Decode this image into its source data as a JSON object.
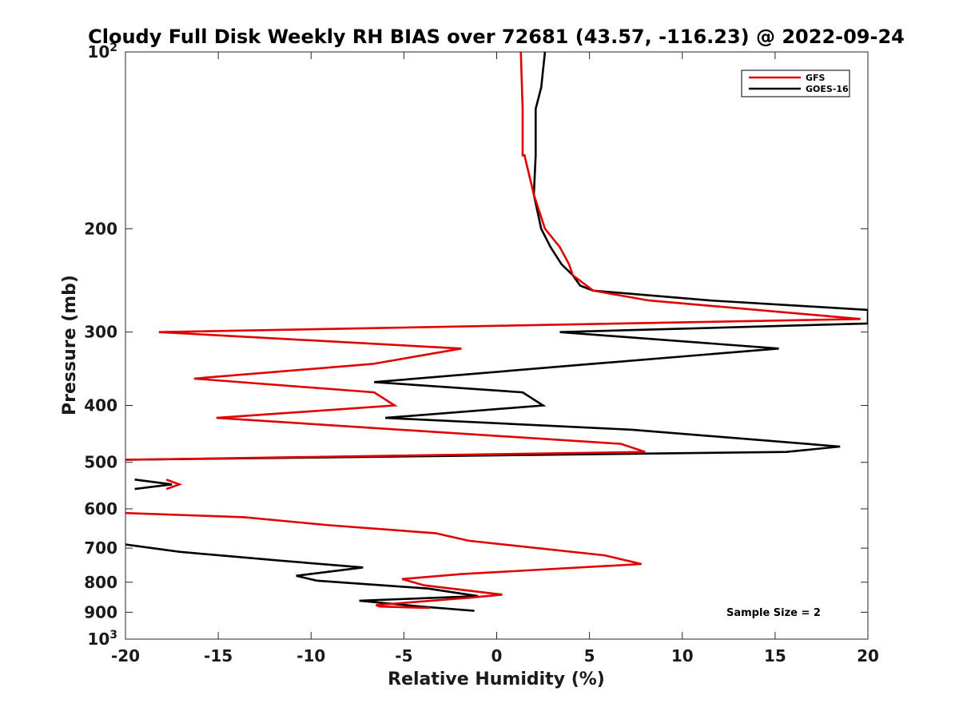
{
  "chart_data": {
    "type": "line",
    "title": "Cloudy Full Disk Weekly RH BIAS over 72681 (43.57, -116.23) @ 2022-09-24",
    "xlabel": "Relative Humidity (%)",
    "ylabel": "Pressure (mb)",
    "xlim": [
      -20,
      20
    ],
    "ylim": [
      100,
      1000
    ],
    "y_scale": "log",
    "y_reversed": true,
    "grid": false,
    "legend_position": "top-right",
    "x_ticks": [
      "-20",
      "-15",
      "-10",
      "-5",
      "0",
      "5",
      "10",
      "15",
      "20"
    ],
    "x_tick_values": [
      -20,
      -15,
      -10,
      -5,
      0,
      5,
      10,
      15,
      20
    ],
    "y_ticks": [
      {
        "value": 100,
        "base": "10",
        "exp": "2",
        "label": ""
      },
      {
        "value": 200,
        "label": "200"
      },
      {
        "value": 300,
        "label": "300"
      },
      {
        "value": 400,
        "label": "400"
      },
      {
        "value": 500,
        "label": "500"
      },
      {
        "value": 600,
        "label": "600"
      },
      {
        "value": 700,
        "label": "700"
      },
      {
        "value": 800,
        "label": "800"
      },
      {
        "value": 900,
        "label": "900"
      },
      {
        "value": 1000,
        "base": "10",
        "exp": "3",
        "label": ""
      }
    ],
    "annotation": "Sample Size = 2",
    "series": [
      {
        "name": "GFS",
        "color": "#e00000",
        "segments": [
          {
            "x": [
              1.3,
              1.4,
              1.4,
              1.4,
              1.5,
              2.0,
              2.6,
              3.4,
              3.9,
              4.1,
              5.2,
              8.2,
              19.6,
              -18.2,
              -1.9,
              -6.7,
              -16.3,
              -6.6,
              -5.5,
              -15.1,
              6.7,
              8.0,
              -20
            ],
            "y": [
              100,
              125,
              125,
              150,
              150,
              175,
              200,
              215,
              230,
              240,
              255,
              265,
              285,
              300,
              320,
              340,
              360,
              380,
              400,
              420,
              465,
              480,
              495
            ]
          },
          {
            "x": [
              -17.8,
              -17.1,
              -17.8
            ],
            "y": [
              535,
              545,
              555
            ]
          },
          {
            "x": [
              -20,
              -13.6,
              -9.0,
              -3.3,
              -1.5,
              5.8,
              7.8,
              -1.9,
              -5.1,
              -3.9,
              0.3,
              -1.4,
              -6.5,
              -6.3,
              -3.6
            ],
            "y": [
              610,
              620,
              640,
              660,
              680,
              720,
              745,
              775,
              790,
              810,
              840,
              850,
              875,
              880,
              885
            ]
          }
        ]
      },
      {
        "name": "GOES-16",
        "color": "#000000",
        "segments": [
          {
            "x": [
              2.6,
              2.4,
              2.1,
              2.1,
              2.1,
              2.0,
              2.4,
              2.9,
              3.5,
              4.1,
              4.5,
              5.2,
              11.5,
              20.0,
              20.0,
              3.4,
              15.2,
              5.1,
              -6.6,
              1.4,
              2.5,
              -6.0,
              7.3,
              18.5,
              15.6,
              -20
            ],
            "y": [
              100,
              115,
              125,
              140,
              150,
              175,
              200,
              215,
              230,
              240,
              250,
              255,
              265,
              275,
              290,
              300,
              320,
              340,
              365,
              380,
              400,
              420,
              440,
              470,
              480,
              495
            ]
          },
          {
            "x": [
              -19.5,
              -17.5,
              -19.5
            ],
            "y": [
              535,
              545,
              555
            ]
          },
          {
            "x": [
              -20,
              -17.1,
              -11.7,
              -7.2,
              -10.8,
              -9.7,
              -3.7,
              -1.0,
              -7.4,
              -4.1,
              -1.2
            ],
            "y": [
              690,
              710,
              735,
              755,
              780,
              795,
              820,
              845,
              860,
              880,
              895
            ]
          }
        ]
      }
    ]
  }
}
